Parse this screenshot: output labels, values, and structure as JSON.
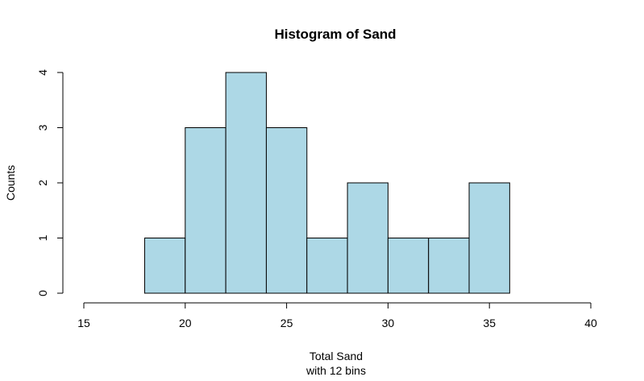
{
  "chart_data": {
    "type": "bar",
    "title": "Histogram of Sand",
    "xlabel": "Total Sand",
    "xlabel_sub": "with 12 bins",
    "ylabel": "Counts",
    "bins": [
      {
        "from": 18,
        "to": 20,
        "count": 1
      },
      {
        "from": 20,
        "to": 22,
        "count": 3
      },
      {
        "from": 22,
        "to": 24,
        "count": 4
      },
      {
        "from": 24,
        "to": 26,
        "count": 3
      },
      {
        "from": 26,
        "to": 28,
        "count": 1
      },
      {
        "from": 28,
        "to": 30,
        "count": 2
      },
      {
        "from": 30,
        "to": 32,
        "count": 1
      },
      {
        "from": 32,
        "to": 34,
        "count": 1
      },
      {
        "from": 34,
        "to": 36,
        "count": 2
      }
    ],
    "xlim": [
      15,
      40
    ],
    "ylim": [
      0,
      4
    ],
    "xticks": [
      "15",
      "20",
      "25",
      "30",
      "35",
      "40"
    ],
    "yticks": [
      "0",
      "1",
      "2",
      "3",
      "4"
    ],
    "bar_color": "#add8e6",
    "grid": false,
    "legend": "none"
  }
}
